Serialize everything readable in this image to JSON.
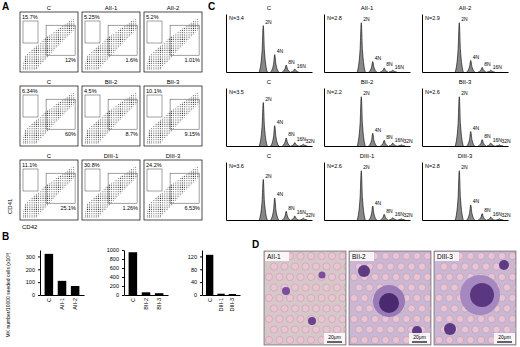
{
  "panel_labels": [
    "A",
    "B",
    "C",
    "D"
  ],
  "flow_cytometry": {
    "x_label": "CD42",
    "y_label": "CD41",
    "plots": [
      {
        "title": "C",
        "values": [
          15.7,
          12
        ],
        "value_labels": [
          "15.7%",
          "12%"
        ]
      },
      {
        "title": "AII-1",
        "values": [
          5.25,
          1.6
        ],
        "value_labels": [
          "5.25%",
          "1.6%"
        ]
      },
      {
        "title": "AII-2",
        "values": [
          5.2,
          1.01
        ],
        "value_labels": [
          "5.2%",
          "1.01%"
        ]
      },
      {
        "title": "C",
        "values": [
          6.34,
          60
        ],
        "value_labels": [
          "6.34%",
          "60%"
        ]
      },
      {
        "title": "BII-2",
        "values": [
          4.5,
          8.7
        ],
        "value_labels": [
          "4.5%",
          "8.7%"
        ]
      },
      {
        "title": "BII-3",
        "values": [
          10.1,
          9.15
        ],
        "value_labels": [
          "10.1%",
          "9.15%"
        ]
      },
      {
        "title": "C",
        "values": [
          11.1,
          25.1
        ],
        "value_labels": [
          "11.1%",
          "25.1%"
        ]
      },
      {
        "title": "DIII-1",
        "values": [
          30.8,
          1.26
        ],
        "value_labels": [
          "30.8%",
          "1.26%"
        ]
      },
      {
        "title": "DIII-3",
        "values": [
          24.2,
          6.53
        ],
        "value_labels": [
          "24.2%",
          "6.53%"
        ]
      }
    ]
  },
  "chart_data": [
    {
      "type": "bar",
      "y_label": "MK number/10000 seeded cells (x10³)",
      "categories": [
        "C",
        "AII-1",
        "AII-2"
      ],
      "values": [
        320,
        110,
        70
      ],
      "ylim": [
        0,
        350
      ],
      "yticks": [
        0,
        100,
        200,
        300
      ],
      "color": "#000000"
    },
    {
      "type": "bar",
      "categories": [
        "C",
        "BII-2",
        "BII-3"
      ],
      "values": [
        950,
        60,
        40
      ],
      "ylim": [
        0,
        1000
      ],
      "yticks": [
        0,
        200,
        400,
        600,
        800,
        1000
      ],
      "color": "#000000"
    },
    {
      "type": "bar",
      "categories": [
        "C",
        "DIII-1",
        "DIII-3"
      ],
      "values": [
        125,
        4,
        3
      ],
      "ylim": [
        0,
        140
      ],
      "yticks": [
        0,
        40,
        80,
        120
      ],
      "color": "#000000"
    }
  ],
  "ploidy": {
    "xlim": [
      0,
      6
    ],
    "ylim": [
      0,
      100
    ],
    "tick_labels": false,
    "plots": [
      {
        "title": "C",
        "n_label": "N=3.4",
        "peaks": [
          {
            "label": "2N",
            "x": 2.6,
            "y": 80
          },
          {
            "label": "4N",
            "x": 3.4,
            "y": 30
          },
          {
            "label": "8N",
            "x": 4.2,
            "y": 12
          },
          {
            "label": "16N",
            "x": 4.8,
            "y": 5
          }
        ]
      },
      {
        "title": "AII-1",
        "n_label": "N=2.8",
        "peaks": [
          {
            "label": "2N",
            "x": 2.6,
            "y": 85
          },
          {
            "label": "4N",
            "x": 3.4,
            "y": 18
          },
          {
            "label": "8N",
            "x": 4.2,
            "y": 7
          },
          {
            "label": "16N",
            "x": 4.8,
            "y": 3
          }
        ]
      },
      {
        "title": "AII-2",
        "n_label": "N=2.9",
        "peaks": [
          {
            "label": "2N",
            "x": 2.6,
            "y": 85
          },
          {
            "label": "4N",
            "x": 3.4,
            "y": 20
          },
          {
            "label": "8N",
            "x": 4.2,
            "y": 8
          },
          {
            "label": "16N",
            "x": 4.8,
            "y": 3
          }
        ]
      },
      {
        "title": "C",
        "n_label": "N=3.5",
        "peaks": [
          {
            "label": "2N",
            "x": 2.6,
            "y": 75
          },
          {
            "label": "4N",
            "x": 3.4,
            "y": 35
          },
          {
            "label": "8N",
            "x": 4.2,
            "y": 14
          },
          {
            "label": "16N",
            "x": 4.8,
            "y": 6
          },
          {
            "label": "32N",
            "x": 5.4,
            "y": 3
          }
        ]
      },
      {
        "title": "BII-2",
        "n_label": "N=2.2",
        "peaks": [
          {
            "label": "2N",
            "x": 2.6,
            "y": 85
          },
          {
            "label": "4N",
            "x": 3.4,
            "y": 22
          },
          {
            "label": "8N",
            "x": 4.2,
            "y": 10
          },
          {
            "label": "16N",
            "x": 4.8,
            "y": 5
          },
          {
            "label": "32N",
            "x": 5.4,
            "y": 2
          }
        ]
      },
      {
        "title": "BII-3",
        "n_label": "N=2.6",
        "peaks": [
          {
            "label": "2N",
            "x": 2.6,
            "y": 85
          },
          {
            "label": "4N",
            "x": 3.4,
            "y": 25
          },
          {
            "label": "8N",
            "x": 4.2,
            "y": 11
          },
          {
            "label": "16N",
            "x": 4.8,
            "y": 5
          },
          {
            "label": "32N",
            "x": 5.4,
            "y": 2
          }
        ]
      },
      {
        "title": "C",
        "n_label": "N=3.6",
        "peaks": [
          {
            "label": "2N",
            "x": 2.6,
            "y": 70
          },
          {
            "label": "4N",
            "x": 3.4,
            "y": 38
          },
          {
            "label": "8N",
            "x": 4.2,
            "y": 15
          },
          {
            "label": "16N",
            "x": 4.8,
            "y": 7
          },
          {
            "label": "32N",
            "x": 5.4,
            "y": 3
          }
        ]
      },
      {
        "title": "DIII-1",
        "n_label": "N=2.6",
        "peaks": [
          {
            "label": "2N",
            "x": 2.6,
            "y": 85
          },
          {
            "label": "4N",
            "x": 3.4,
            "y": 24
          },
          {
            "label": "8N",
            "x": 4.2,
            "y": 10
          },
          {
            "label": "16N",
            "x": 4.8,
            "y": 4
          },
          {
            "label": "32N",
            "x": 5.4,
            "y": 2
          }
        ]
      },
      {
        "title": "DIII-3",
        "n_label": "N=2.8",
        "peaks": [
          {
            "label": "2N",
            "x": 2.6,
            "y": 85
          },
          {
            "label": "4N",
            "x": 3.4,
            "y": 26
          },
          {
            "label": "8N",
            "x": 4.2,
            "y": 11
          },
          {
            "label": "16N",
            "x": 4.8,
            "y": 5
          },
          {
            "label": "32N",
            "x": 5.4,
            "y": 2
          }
        ]
      }
    ]
  },
  "micrographs": {
    "scale_label": "20μm",
    "plots": [
      "AII-1",
      "BII-2",
      "DIII-3"
    ]
  }
}
